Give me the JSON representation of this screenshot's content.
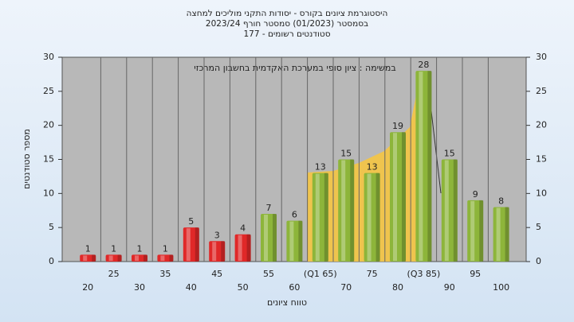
{
  "chart_data": {
    "type": "bar",
    "title": "היסטוגרמת ציונים בקורס - יסודות התקני מוליכים למחצה",
    "subtitles": [
      "בסמסטר (01/2023) סמסטר חורף 2023/24",
      "סטודנטים רשומים - 177"
    ],
    "annotation": "במשימה : ציון סופי במערכת האקדמית בחשבון המרכזי",
    "x_label": "טווח ציונים",
    "y_label": "מספר סטודנטים",
    "categories": [
      "20",
      "25",
      "30",
      "35",
      "40",
      "45",
      "50",
      "55",
      "60",
      "(Q1 65)",
      "70",
      "75",
      "80",
      "(Q3 85)",
      "90",
      "95",
      "100"
    ],
    "values": [
      1,
      1,
      1,
      1,
      5,
      3,
      4,
      7,
      6,
      13,
      15,
      13,
      19,
      28,
      15,
      9,
      8
    ],
    "colors": [
      "#e02828",
      "#e02828",
      "#e02828",
      "#e02828",
      "#e02828",
      "#e02828",
      "#e02828",
      "#8db53a",
      "#8db53a",
      "#8db53a",
      "#8db53a",
      "#8db53a",
      "#8db53a",
      "#8db53a",
      "#8db53a",
      "#8db53a",
      "#8db53a"
    ],
    "ylim": [
      0,
      30
    ],
    "yticks": [
      0,
      5,
      10,
      15,
      20,
      25,
      30
    ],
    "y2lim": [
      0,
      30
    ],
    "y2ticks": [
      0,
      5,
      10,
      15,
      20,
      25,
      30
    ],
    "grid": true
  }
}
